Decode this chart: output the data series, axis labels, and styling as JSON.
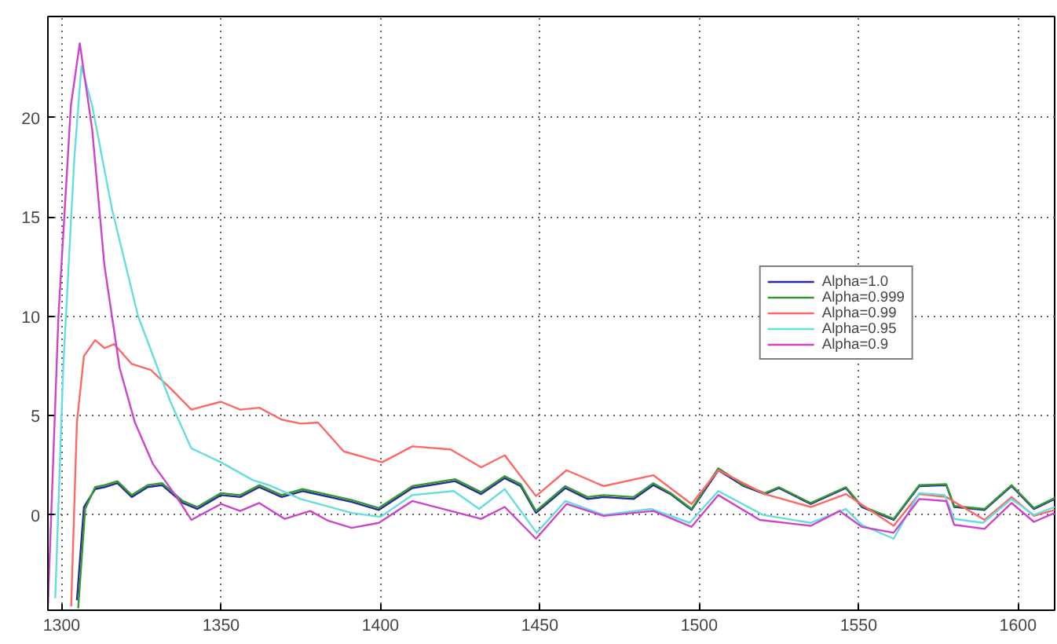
{
  "chart_data": {
    "type": "line",
    "xlim": [
      1295.7,
      1611.5
    ],
    "ylim": [
      -4.8,
      25.1
    ],
    "xticks": [
      1300,
      1350,
      1400,
      1450,
      1500,
      1550,
      1600
    ],
    "yticks": [
      0,
      5,
      10,
      15,
      20
    ],
    "grid": true,
    "legend": "right",
    "line_style": "solid",
    "marker": "none",
    "series": [
      {
        "name": "Alpha=1.0",
        "color": "#2b2b9a",
        "x": [
          1304.8,
          1307,
          1310.5,
          1313.5,
          1317.5,
          1322,
          1327,
          1331.5,
          1338,
          1342.6,
          1350,
          1356,
          1362,
          1369,
          1375.6,
          1391,
          1399.5,
          1410,
          1423.4,
          1431.6,
          1439,
          1444,
          1448.8,
          1458,
          1465,
          1470,
          1479.4,
          1485.6,
          1491,
          1497.6,
          1506,
          1514,
          1520.6,
          1525,
          1535,
          1546,
          1551,
          1561,
          1569,
          1577.5,
          1580,
          1589.5,
          1598,
          1605,
          1611.5
        ],
        "values": [
          -4.3,
          0.4,
          1.3,
          1.4,
          1.6,
          0.9,
          1.4,
          1.5,
          0.6,
          0.3,
          1.0,
          0.9,
          1.4,
          0.9,
          1.2,
          0.65,
          0.25,
          1.35,
          1.7,
          1.05,
          1.85,
          1.45,
          0.1,
          1.35,
          0.8,
          0.9,
          0.8,
          1.5,
          1.05,
          0.25,
          2.25,
          1.45,
          1.05,
          1.35,
          0.55,
          1.35,
          0.4,
          -0.25,
          1.45,
          1.5,
          0.4,
          0.25,
          1.45,
          0.3,
          0.8
        ]
      },
      {
        "name": "Alpha=0.999",
        "color": "#339933",
        "x": [
          1305.2,
          1307.4,
          1310.5,
          1313.5,
          1317.5,
          1322,
          1327,
          1331.5,
          1338,
          1342.6,
          1350,
          1356,
          1362,
          1369,
          1375.6,
          1391,
          1399.5,
          1410,
          1423.4,
          1431.6,
          1439,
          1444,
          1448.8,
          1458,
          1465,
          1470,
          1479.4,
          1485.6,
          1491,
          1497.6,
          1506,
          1514,
          1520.6,
          1525,
          1535,
          1546,
          1551,
          1561,
          1569,
          1577.5,
          1580,
          1589.5,
          1598,
          1605,
          1611.5
        ],
        "values": [
          -4.7,
          0.3,
          1.4,
          1.5,
          1.7,
          1.0,
          1.5,
          1.6,
          0.7,
          0.4,
          1.1,
          1.0,
          1.5,
          1.0,
          1.3,
          0.75,
          0.35,
          1.45,
          1.8,
          1.15,
          1.95,
          1.55,
          0.2,
          1.45,
          0.9,
          1.0,
          0.9,
          1.6,
          1.1,
          0.3,
          2.35,
          1.5,
          1.1,
          1.4,
          0.6,
          1.4,
          0.45,
          -0.2,
          1.5,
          1.55,
          0.45,
          0.3,
          1.5,
          0.35,
          0.85
        ]
      },
      {
        "name": "Alpha=0.99",
        "color": "#ff6666",
        "x": [
          1303,
          1304.8,
          1307,
          1310.5,
          1313.5,
          1316.5,
          1322,
          1328,
          1334,
          1340.7,
          1350,
          1356,
          1362,
          1369,
          1375,
          1380.4,
          1388.5,
          1400.5,
          1410,
          1422,
          1431.6,
          1439,
          1448.8,
          1458.4,
          1470,
          1485.6,
          1497.6,
          1506,
          1520.6,
          1535,
          1546,
          1561,
          1569,
          1577.5,
          1589.5,
          1598,
          1605,
          1611.5
        ],
        "values": [
          -4.6,
          4.65,
          8.0,
          8.8,
          8.4,
          8.6,
          7.6,
          7.3,
          6.4,
          5.3,
          5.7,
          5.3,
          5.4,
          4.8,
          4.6,
          4.65,
          3.2,
          2.65,
          3.45,
          3.3,
          2.4,
          3.0,
          0.95,
          2.25,
          1.45,
          2.0,
          0.55,
          2.25,
          1.05,
          0.4,
          1.05,
          -0.55,
          1.05,
          0.9,
          -0.25,
          0.9,
          -0.05,
          0.25
        ]
      },
      {
        "name": "Alpha=0.95",
        "color": "#66dddd",
        "x": [
          1298,
          1300.5,
          1304,
          1306.2,
          1309.6,
          1315.8,
          1324,
          1334,
          1340.7,
          1350,
          1360,
          1365,
          1375,
          1391,
          1400,
          1410,
          1423,
          1431,
          1439,
          1449,
          1458,
          1470,
          1485,
          1497,
          1506,
          1520,
          1535,
          1546,
          1551,
          1561,
          1569,
          1577,
          1580,
          1589,
          1598,
          1605,
          1611.5
        ],
        "values": [
          -4.2,
          7.4,
          18.0,
          22.6,
          20.6,
          15.4,
          10.0,
          5.75,
          3.35,
          2.65,
          1.75,
          1.5,
          0.8,
          0.1,
          -0.1,
          1.0,
          1.2,
          0.3,
          1.3,
          -0.9,
          0.7,
          0.0,
          0.3,
          -0.4,
          1.2,
          0.0,
          -0.4,
          0.3,
          -0.5,
          -1.2,
          1.1,
          1.0,
          -0.2,
          -0.4,
          0.8,
          0.0,
          0.4
        ]
      },
      {
        "name": "Alpha=0.9",
        "color": "#cc44cc",
        "x": [
          1295.7,
          1299,
          1302.9,
          1305.7,
          1309.6,
          1313.4,
          1318.2,
          1323,
          1328.7,
          1335.9,
          1340.7,
          1350,
          1356,
          1362,
          1370,
          1378,
          1383.7,
          1391,
          1399.5,
          1410,
          1431.6,
          1439,
          1448.8,
          1458.4,
          1470,
          1485.6,
          1497.6,
          1506,
          1519,
          1535,
          1544,
          1551,
          1561,
          1569,
          1577.5,
          1580,
          1589.5,
          1598,
          1605,
          1611.5
        ],
        "values": [
          -4.6,
          10.0,
          20.6,
          23.75,
          19.4,
          12.6,
          7.4,
          4.65,
          2.55,
          0.95,
          -0.25,
          0.55,
          0.2,
          0.6,
          -0.2,
          0.2,
          -0.3,
          -0.65,
          -0.4,
          0.7,
          -0.2,
          0.4,
          -1.2,
          0.55,
          -0.05,
          0.2,
          -0.6,
          1.0,
          -0.25,
          -0.55,
          0.2,
          -0.6,
          -0.9,
          0.8,
          0.7,
          -0.5,
          -0.7,
          0.6,
          -0.35,
          0.1
        ]
      }
    ]
  }
}
